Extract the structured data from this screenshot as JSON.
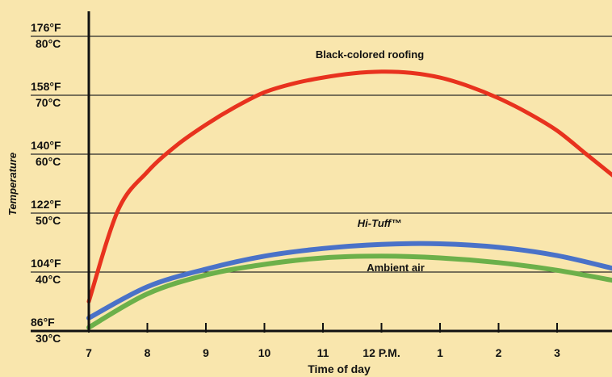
{
  "chart_data": {
    "type": "line",
    "xlabel": "Time of day",
    "ylabel": "Temperature",
    "x_ticks": [
      "7",
      "8",
      "9",
      "10",
      "11",
      "12 P.M.",
      "1",
      "2",
      "3"
    ],
    "x_values": [
      7,
      8,
      9,
      10,
      11,
      12,
      13,
      14,
      15
    ],
    "x_range": [
      7,
      16
    ],
    "ylim": [
      30,
      80
    ],
    "y_ticks": [
      {
        "celsius": 30,
        "fahrenheit_label": "86°F",
        "celsius_label": "30°C"
      },
      {
        "celsius": 40,
        "fahrenheit_label": "104°F",
        "celsius_label": "40°C"
      },
      {
        "celsius": 50,
        "fahrenheit_label": "122°F",
        "celsius_label": "50°C"
      },
      {
        "celsius": 60,
        "fahrenheit_label": "140°F",
        "celsius_label": "60°C"
      },
      {
        "celsius": 70,
        "fahrenheit_label": "158°F",
        "celsius_label": "70°C"
      },
      {
        "celsius": 80,
        "fahrenheit_label": "176°F",
        "celsius_label": "80°C"
      }
    ],
    "grid": "horizontal",
    "series": [
      {
        "name": "Black-colored roofing",
        "color": "#e8321e",
        "x": [
          7,
          7.5,
          8,
          8.5,
          9,
          9.5,
          10,
          10.5,
          11,
          11.5,
          12,
          12.5,
          13,
          13.5,
          14,
          14.5,
          15,
          15.5,
          16
        ],
        "y": [
          35,
          50.5,
          57,
          61.5,
          65,
          68,
          70.5,
          72,
          73,
          73.7,
          74,
          73.8,
          73,
          71.5,
          69.5,
          67,
          64,
          60,
          56
        ]
      },
      {
        "name": "Hi-Tuff™",
        "color": "#4a72c8",
        "x": [
          7,
          8,
          9,
          10,
          11,
          12,
          13,
          14,
          15,
          16
        ],
        "y": [
          32.2,
          37.5,
          40.5,
          42.7,
          44,
          44.7,
          44.8,
          44.2,
          42.8,
          40.5
        ]
      },
      {
        "name": "Ambient air",
        "color": "#6cb04a",
        "x": [
          7,
          8,
          9,
          10,
          11,
          12,
          13,
          14,
          15,
          16
        ],
        "y": [
          30.6,
          36.3,
          39.5,
          41.3,
          42.4,
          42.7,
          42.4,
          41.6,
          40.3,
          38.5
        ]
      }
    ]
  }
}
